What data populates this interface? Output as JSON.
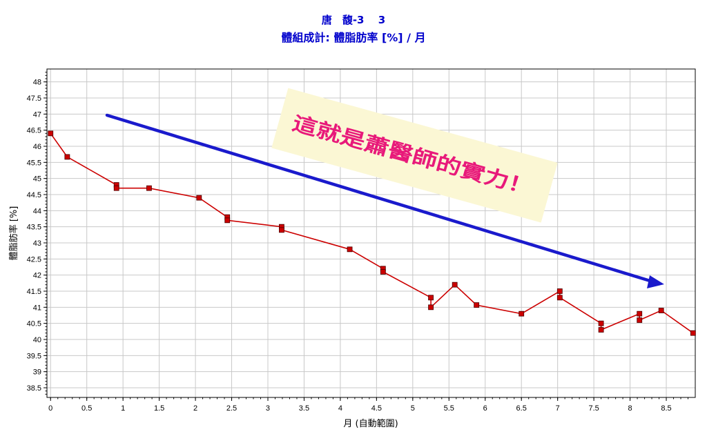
{
  "chart_data": {
    "type": "line",
    "title": "唐　馥-3　 3",
    "subtitle": "體組成計: 體脂肪率 [%] / 月",
    "xlabel": "月 (自動範圍)",
    "ylabel": "體脂肪率 [%]",
    "xlim": [
      -0.05,
      8.9
    ],
    "ylim": [
      38.2,
      48.4
    ],
    "x_ticks": [
      "0",
      "0.5",
      "1",
      "1.5",
      "2",
      "2.5",
      "3",
      "3.5",
      "4",
      "4.5",
      "5",
      "5.5",
      "6",
      "6.5",
      "7",
      "7.5",
      "8",
      "8.5"
    ],
    "y_ticks": [
      "38.5",
      "39",
      "39.5",
      "40",
      "40.5",
      "41",
      "41.5",
      "42",
      "42.5",
      "43",
      "43.5",
      "44",
      "44.5",
      "45",
      "45.5",
      "46",
      "46.5",
      "47",
      "47.5",
      "48"
    ],
    "grid": true,
    "series": [
      {
        "color": "#cc0000",
        "marker": "square",
        "points": [
          [
            0.0,
            46.4
          ],
          [
            0.23,
            45.67
          ],
          [
            0.91,
            44.8
          ],
          [
            0.91,
            44.7
          ],
          [
            1.36,
            44.7
          ],
          [
            2.05,
            44.4
          ],
          [
            2.44,
            43.8
          ],
          [
            2.44,
            43.7
          ],
          [
            3.19,
            43.5
          ],
          [
            3.19,
            43.4
          ],
          [
            4.13,
            42.8
          ],
          [
            4.59,
            42.2
          ],
          [
            4.59,
            42.1
          ],
          [
            5.25,
            41.3
          ],
          [
            5.25,
            41.0
          ],
          [
            5.58,
            41.7
          ],
          [
            5.88,
            41.07
          ],
          [
            6.5,
            40.8
          ],
          [
            7.03,
            41.5
          ],
          [
            7.03,
            41.3
          ],
          [
            7.6,
            40.5
          ],
          [
            7.6,
            40.3
          ],
          [
            8.13,
            40.8
          ],
          [
            8.13,
            40.6
          ],
          [
            8.43,
            40.9
          ],
          [
            8.87,
            40.2
          ]
        ]
      }
    ],
    "annotation": {
      "text": "這就是蕭醫師的實力！",
      "arrow_color": "#1a1acc",
      "note_color": "#e8197a",
      "note_background": "#fbf7d4"
    }
  }
}
